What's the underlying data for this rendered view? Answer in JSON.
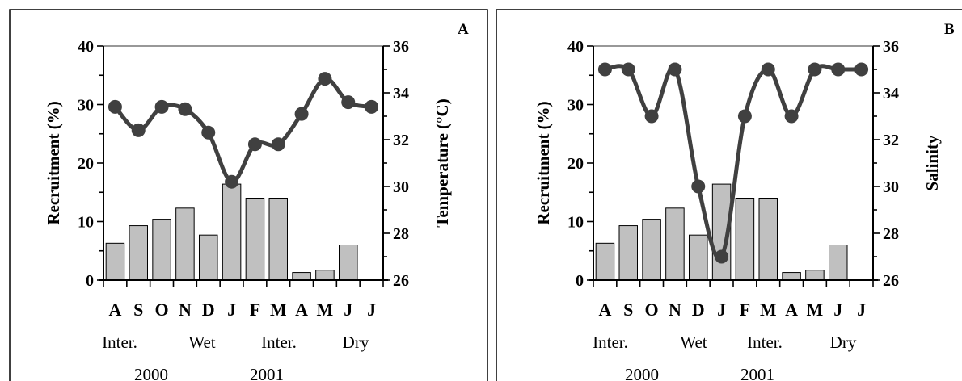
{
  "chart_data": [
    {
      "type": "bar",
      "panel": "A",
      "categories": [
        "A",
        "S",
        "O",
        "N",
        "D",
        "J",
        "F",
        "M",
        "A",
        "M",
        "J",
        "J"
      ],
      "bar_values": [
        6.3,
        9.3,
        10.4,
        12.3,
        7.7,
        16.4,
        14.0,
        14.0,
        1.3,
        1.7,
        6.0,
        null
      ],
      "line_values": [
        33.4,
        32.4,
        33.4,
        33.3,
        32.3,
        30.2,
        31.8,
        31.8,
        33.1,
        34.6,
        33.6,
        33.4
      ],
      "ylabel": "Recruitment (%)",
      "y2label": "Temperature (°C)",
      "ylim": [
        0,
        40
      ],
      "y2lim": [
        26,
        36
      ],
      "yticks": [
        "0",
        "10",
        "20",
        "30",
        "40"
      ],
      "y2ticks": [
        "26",
        "28",
        "30",
        "32",
        "34",
        "36"
      ],
      "seasons": [
        "Inter.",
        "Wet",
        "Inter.",
        "Dry"
      ],
      "years": [
        "2000",
        "2001"
      ]
    },
    {
      "type": "bar",
      "panel": "B",
      "categories": [
        "A",
        "S",
        "O",
        "N",
        "D",
        "J",
        "F",
        "M",
        "A",
        "M",
        "J",
        "J"
      ],
      "bar_values": [
        6.3,
        9.3,
        10.4,
        12.3,
        7.7,
        16.4,
        14.0,
        14.0,
        1.3,
        1.7,
        6.0,
        null
      ],
      "line_values": [
        35,
        35,
        33,
        35,
        30,
        27,
        33,
        35,
        33,
        35,
        35,
        35
      ],
      "ylabel": "Recruitment (%)",
      "y2label": "Salinity",
      "ylim": [
        0,
        40
      ],
      "y2lim": [
        26,
        36
      ],
      "yticks": [
        "0",
        "10",
        "20",
        "30",
        "40"
      ],
      "y2ticks": [
        "26",
        "28",
        "30",
        "32",
        "34",
        "36"
      ],
      "seasons": [
        "Inter.",
        "Wet",
        "Inter.",
        "Dry"
      ],
      "years": [
        "2000",
        "2001"
      ]
    }
  ],
  "colors": {
    "bar_fill": "#c0c0c0",
    "line": "#404040",
    "frame": "#000000"
  }
}
